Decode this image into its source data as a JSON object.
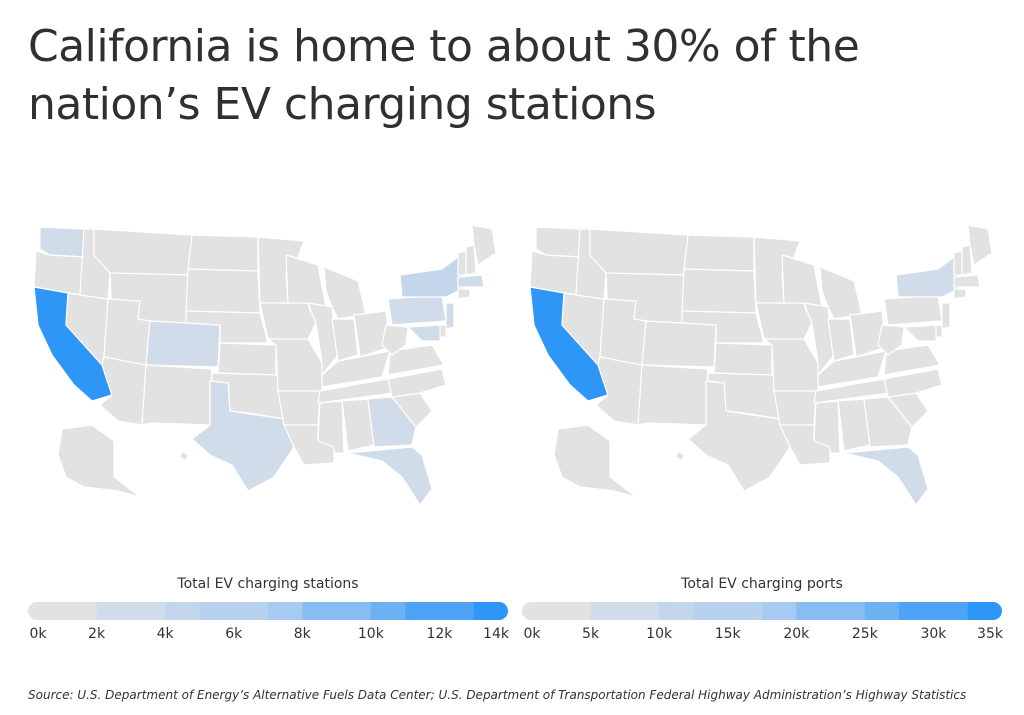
{
  "title": "California is home to about 30% of the nation’s EV charging stations",
  "source": "Source:  U.S. Department of Energy’s Alternative Fuels Data Center; U.S. Department of Transportation Federal Highway Administration’s Highway Statistics",
  "colors": {
    "no_data": "#e2e2e2",
    "scale": [
      "#e2e2e2",
      "#d0dcea",
      "#c4d6eb",
      "#b7d1ee",
      "#a6caf1",
      "#89bcf2",
      "#6db0f3",
      "#4ea3f5",
      "#2e96f7"
    ],
    "state_border": "#ffffff"
  },
  "chart_data": [
    {
      "type": "map",
      "legend_title": "Total EV charging stations",
      "scale_breaks": [
        0,
        1000,
        2000,
        4000,
        6000,
        8000,
        10000,
        12000,
        14000
      ],
      "tick_labels": [
        "0k",
        "2k",
        "4k",
        "6k",
        "8k",
        "10k",
        "12k",
        "14k"
      ],
      "tick_values": [
        0,
        2000,
        4000,
        6000,
        8000,
        10000,
        12000,
        14000
      ],
      "range": [
        0,
        14000
      ],
      "highlighted_states": [
        {
          "state": "California",
          "value": 14000
        },
        {
          "state": "Texas",
          "value": 2200
        },
        {
          "state": "New York",
          "value": 2800
        },
        {
          "state": "Florida",
          "value": 2400
        },
        {
          "state": "Washington",
          "value": 1500
        },
        {
          "state": "Colorado",
          "value": 1700
        },
        {
          "state": "Georgia",
          "value": 1600
        },
        {
          "state": "Pennsylvania",
          "value": 1300
        },
        {
          "state": "Massachusetts",
          "value": 2000
        },
        {
          "state": "Maryland",
          "value": 1300
        },
        {
          "state": "New Jersey",
          "value": 1300
        }
      ]
    },
    {
      "type": "map",
      "legend_title": "Total EV charging ports",
      "scale_breaks": [
        0,
        5000,
        10000,
        15000,
        20000,
        25000,
        30000,
        35000
      ],
      "tick_labels": [
        "0k",
        "5k",
        "10k",
        "15k",
        "20k",
        "25k",
        "30k",
        "35k"
      ],
      "tick_values": [
        0,
        5000,
        10000,
        15000,
        20000,
        25000,
        30000,
        35000
      ],
      "range": [
        0,
        35000
      ],
      "highlighted_states": [
        {
          "state": "California",
          "value": 35000
        },
        {
          "state": "New York",
          "value": 6500
        },
        {
          "state": "Florida",
          "value": 6000
        }
      ]
    }
  ]
}
